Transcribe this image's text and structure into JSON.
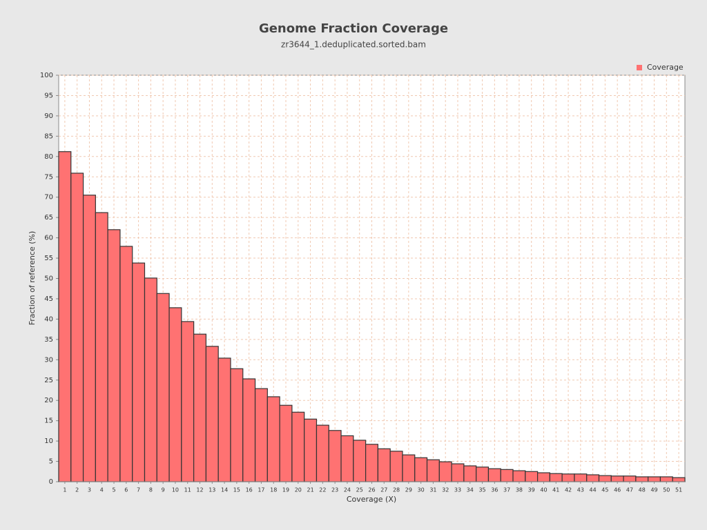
{
  "chart_data": {
    "type": "bar",
    "title": "Genome Fraction Coverage",
    "subtitle": "zr3644_1.deduplicated.sorted.bam",
    "x_label": "Coverage (X)",
    "y_label": "Fraction of reference (%)",
    "categories": [
      "1",
      "2",
      "3",
      "4",
      "5",
      "6",
      "7",
      "8",
      "9",
      "10",
      "11",
      "12",
      "13",
      "14",
      "15",
      "16",
      "17",
      "18",
      "19",
      "20",
      "21",
      "22",
      "23",
      "24",
      "25",
      "26",
      "27",
      "28",
      "29",
      "30",
      "31",
      "32",
      "33",
      "34",
      "35",
      "36",
      "37",
      "38",
      "39",
      "40",
      "41",
      "42",
      "43",
      "44",
      "45",
      "46",
      "47",
      "48",
      "49",
      "50",
      "51"
    ],
    "series": [
      {
        "name": "Coverage",
        "color": "#ff7272",
        "values": [
          81.2,
          75.9,
          70.5,
          66.2,
          62.0,
          57.9,
          53.8,
          50.1,
          46.3,
          42.8,
          39.4,
          36.3,
          33.3,
          30.4,
          27.8,
          25.3,
          22.9,
          20.9,
          18.8,
          17.1,
          15.4,
          13.9,
          12.6,
          11.3,
          10.2,
          9.2,
          8.1,
          7.5,
          6.6,
          5.9,
          5.4,
          4.9,
          4.4,
          3.9,
          3.6,
          3.2,
          3.0,
          2.7,
          2.5,
          2.2,
          2.0,
          1.9,
          1.9,
          1.7,
          1.5,
          1.4,
          1.4,
          1.2,
          1.2,
          1.2,
          1.0
        ]
      }
    ],
    "ylim": [
      0,
      100
    ],
    "yticks": [
      0,
      5,
      10,
      15,
      20,
      25,
      30,
      35,
      40,
      45,
      50,
      55,
      60,
      65,
      70,
      75,
      80,
      85,
      90,
      95,
      100
    ],
    "grid": true,
    "legend": "top-right"
  }
}
